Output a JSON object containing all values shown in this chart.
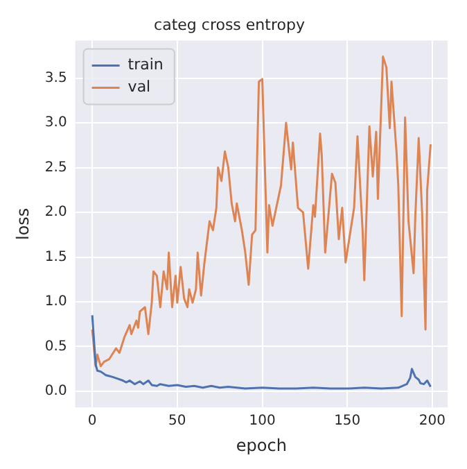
{
  "chart_data": {
    "type": "line",
    "title": "categ cross entropy",
    "xlabel": "epoch",
    "ylabel": "loss",
    "xlim": [
      -10,
      209
    ],
    "ylim": [
      -0.18,
      3.92
    ],
    "xticks": [
      0,
      50,
      100,
      150,
      200
    ],
    "yticks": [
      {
        "value": 0,
        "label": "0.0"
      },
      {
        "value": 0.5,
        "label": "0.5"
      },
      {
        "value": 1,
        "label": "1.0"
      },
      {
        "value": 1.5,
        "label": "1.5"
      },
      {
        "value": 2,
        "label": "2.0"
      },
      {
        "value": 2.5,
        "label": "2.5"
      },
      {
        "value": 3,
        "label": "3.0"
      },
      {
        "value": 3.5,
        "label": "3.5"
      }
    ],
    "grid": true,
    "legend": "top left",
    "marker": "none",
    "line_style": "solid",
    "series": [
      {
        "name": "train",
        "color": "#4c72b0",
        "x": [
          0,
          2,
          3,
          5,
          8,
          10,
          12,
          15,
          18,
          20,
          22,
          25,
          28,
          30,
          33,
          35,
          38,
          40,
          45,
          50,
          55,
          60,
          65,
          70,
          75,
          80,
          90,
          100,
          110,
          120,
          130,
          140,
          150,
          160,
          170,
          180,
          185,
          187,
          188,
          190,
          192,
          193,
          195,
          197,
          199
        ],
        "values": [
          0.85,
          0.3,
          0.23,
          0.22,
          0.18,
          0.17,
          0.16,
          0.14,
          0.12,
          0.1,
          0.12,
          0.08,
          0.11,
          0.08,
          0.12,
          0.07,
          0.06,
          0.08,
          0.06,
          0.07,
          0.05,
          0.06,
          0.04,
          0.06,
          0.04,
          0.05,
          0.03,
          0.04,
          0.03,
          0.03,
          0.04,
          0.03,
          0.03,
          0.04,
          0.03,
          0.04,
          0.08,
          0.15,
          0.25,
          0.16,
          0.13,
          0.09,
          0.08,
          0.12,
          0.05
        ]
      },
      {
        "name": "val",
        "color": "#dd8452",
        "x": [
          0,
          2,
          3,
          5,
          7,
          10,
          14,
          16,
          19,
          22,
          23,
          26,
          27,
          28,
          31,
          33,
          35,
          36,
          38,
          40,
          42,
          44,
          45,
          47,
          49,
          50,
          52,
          54,
          56,
          57,
          59,
          61,
          62,
          64,
          66,
          69,
          71,
          73,
          74,
          76,
          78,
          80,
          82,
          84,
          85,
          88,
          90,
          92,
          94,
          96,
          98,
          100,
          103,
          104,
          106,
          108,
          111,
          114,
          117,
          118,
          121,
          124,
          127,
          130,
          131,
          134,
          135,
          137,
          141,
          143,
          145,
          147,
          149,
          154,
          156,
          159,
          160,
          163,
          165,
          167,
          168,
          171,
          173,
          175,
          176,
          179,
          180,
          182,
          184,
          186,
          189,
          190,
          192,
          194,
          196,
          197,
          199
        ],
        "values": [
          0.69,
          0.28,
          0.41,
          0.28,
          0.33,
          0.36,
          0.48,
          0.43,
          0.61,
          0.74,
          0.64,
          0.79,
          0.71,
          0.89,
          0.94,
          0.64,
          0.99,
          1.34,
          1.29,
          0.94,
          1.34,
          1.14,
          1.55,
          0.94,
          1.29,
          0.99,
          1.39,
          1.04,
          0.94,
          1.14,
          0.99,
          1.14,
          1.55,
          1.07,
          1.44,
          1.9,
          1.8,
          2.05,
          2.5,
          2.35,
          2.68,
          2.5,
          2.1,
          1.9,
          2.1,
          1.8,
          1.55,
          1.19,
          1.75,
          1.8,
          3.46,
          3.49,
          1.55,
          2.08,
          1.85,
          2.03,
          2.3,
          3.0,
          2.48,
          2.78,
          2.05,
          2.0,
          1.37,
          2.08,
          1.95,
          2.88,
          2.63,
          1.55,
          2.43,
          2.33,
          1.7,
          2.05,
          1.44,
          2.05,
          2.85,
          1.8,
          1.24,
          2.96,
          2.4,
          2.9,
          2.15,
          3.74,
          3.62,
          2.94,
          3.46,
          2.66,
          2.3,
          0.84,
          3.06,
          1.9,
          1.32,
          1.95,
          2.83,
          2.0,
          0.69,
          2.25,
          2.76
        ]
      }
    ]
  }
}
